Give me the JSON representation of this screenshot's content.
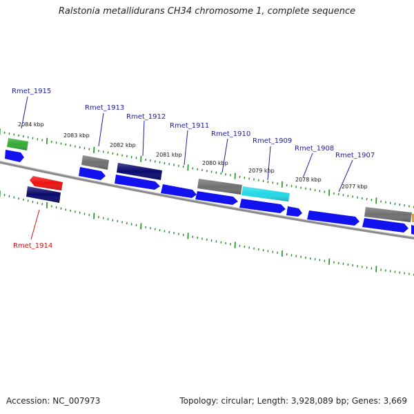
{
  "title": "Ralstonia metallidurans CH34 chromosome 1, complete sequence",
  "footer": {
    "accession": "Accession: NC_007973",
    "summary": "Topology: circular; Length: 3,928,089 bp; Genes: 3,669"
  },
  "colors": {
    "backbone": "#8a8a8a",
    "tick": "#1a8a1a",
    "label_forward": "#1a1aa8",
    "label_reverse": "#d01010",
    "scale_text": "#111111"
  },
  "scale": {
    "unit": "kbp",
    "labels": [
      "2084 kbp",
      "2083 kbp",
      "2082 kbp",
      "2081 kbp",
      "2080 kbp",
      "2079 kbp",
      "2078 kbp",
      "2077 kbp"
    ]
  },
  "genes": [
    {
      "label": "Rmet_1915",
      "strand": "+",
      "color": "#33aa33"
    },
    {
      "label": "Rmet_1914",
      "strand": "-",
      "color": "#ee1111"
    },
    {
      "label": "Rmet_1913",
      "strand": "+",
      "color": "#707070"
    },
    {
      "label": "Rmet_1912",
      "strand": "+",
      "color": "#0a0a6e"
    },
    {
      "label": "Rmet_1911",
      "strand": "+",
      "color": "#0a0a6e"
    },
    {
      "label": "Rmet_1910",
      "strand": "+",
      "color": "#707070"
    },
    {
      "label": "Rmet_1909",
      "strand": "+",
      "color": "#22d8e8"
    },
    {
      "label": "Rmet_1908",
      "strand": "+",
      "color": "#1a1aee"
    },
    {
      "label": "Rmet_1907",
      "strand": "+",
      "color": "#707070"
    }
  ]
}
